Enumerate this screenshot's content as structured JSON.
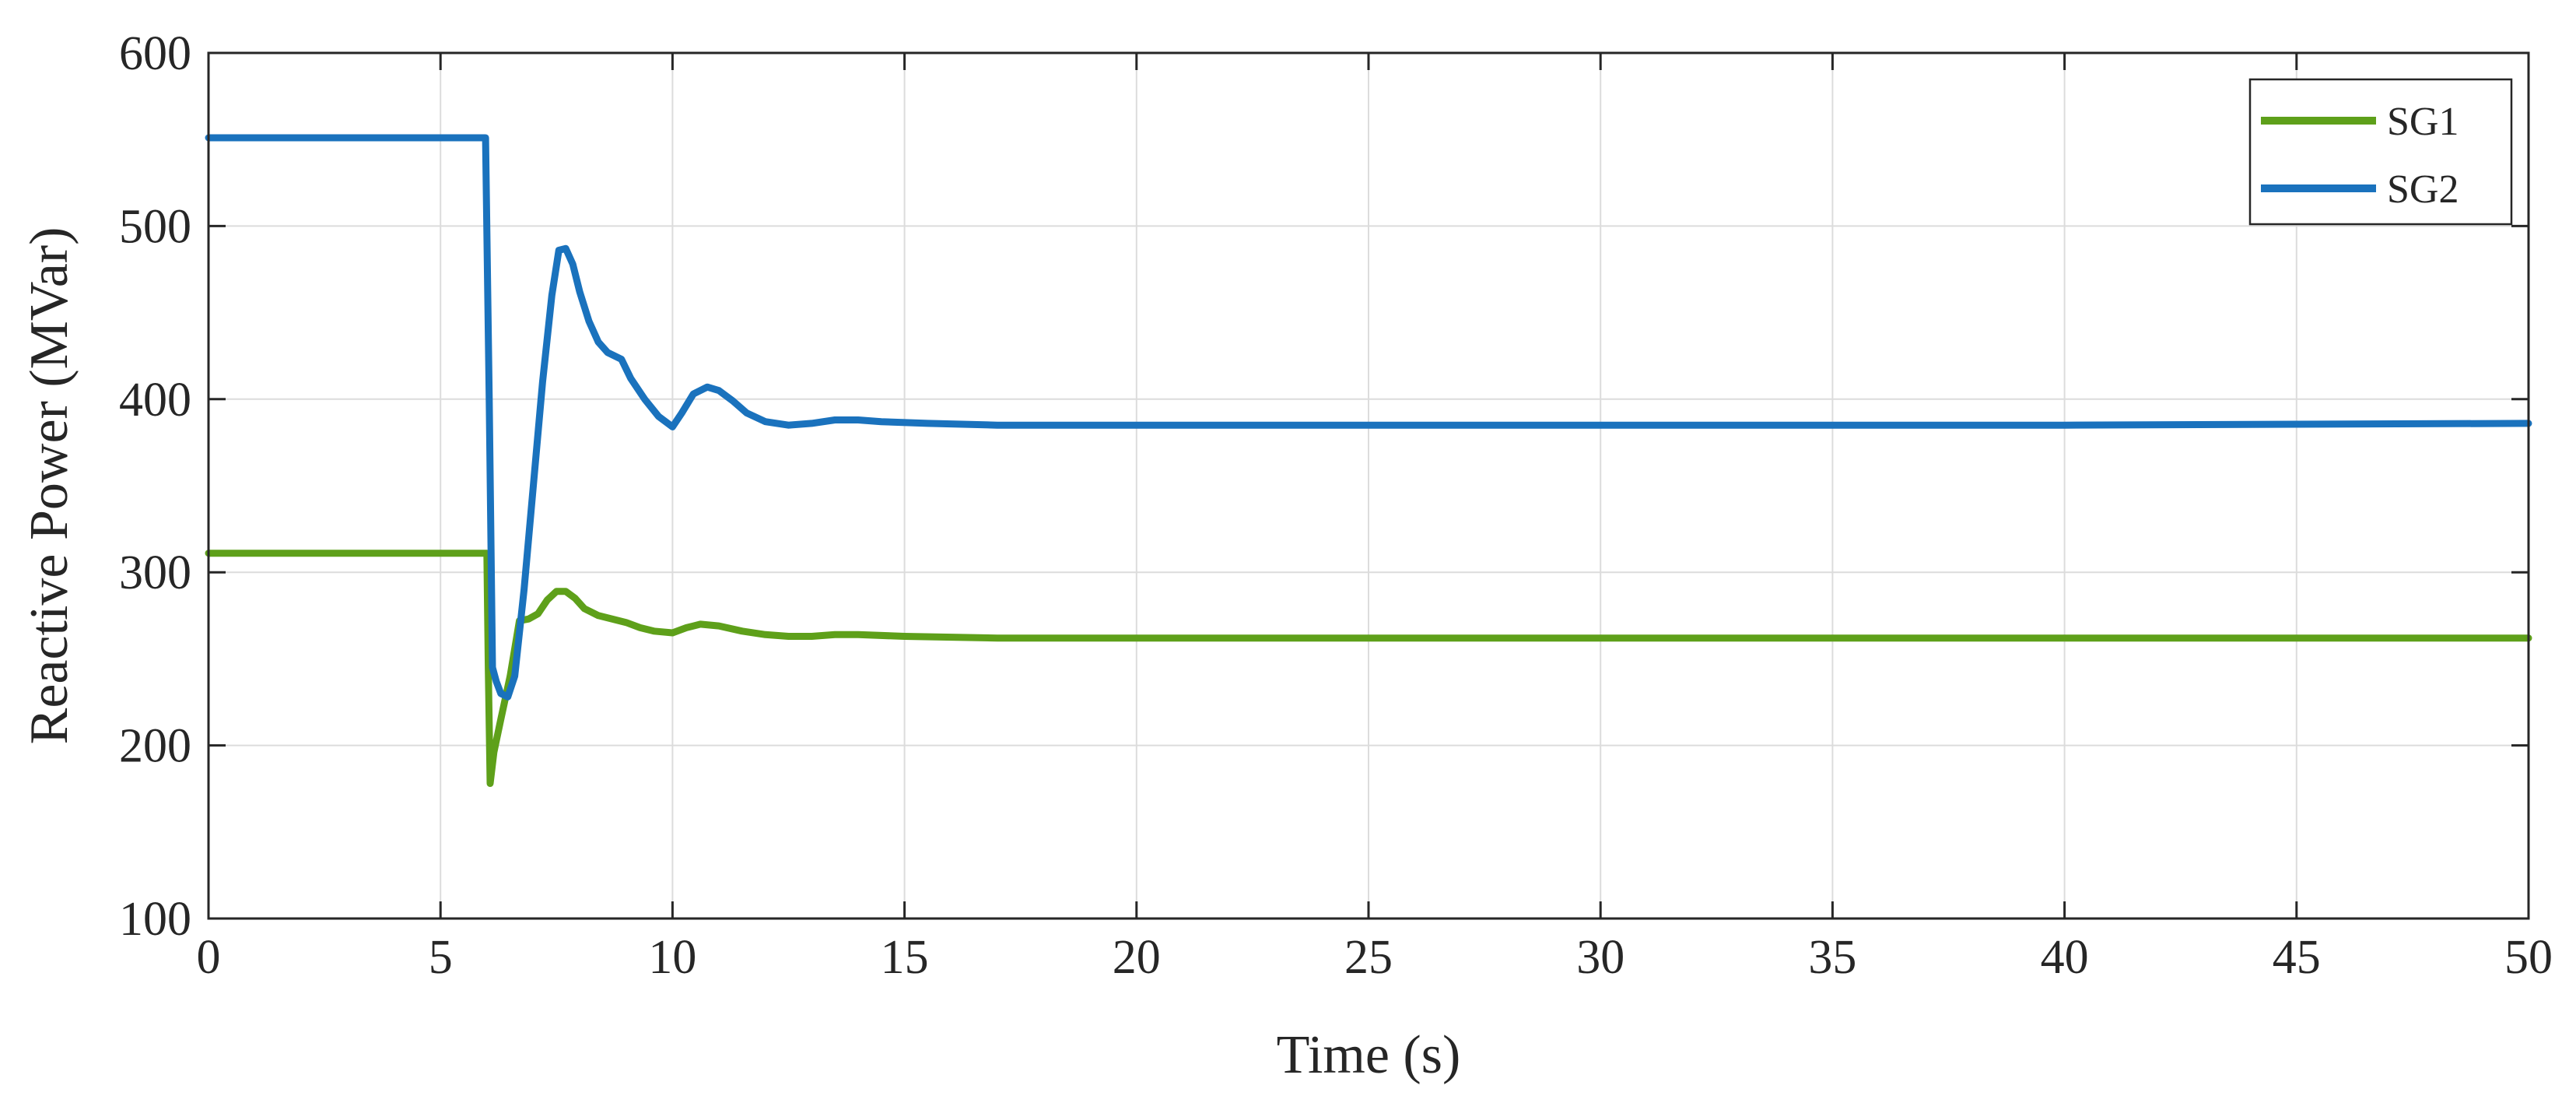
{
  "chart_data": {
    "type": "line",
    "title": "",
    "xlabel": "Time (s)",
    "ylabel": "Reactive Power (MVar)",
    "xlim": [
      0,
      50
    ],
    "ylim": [
      100,
      600
    ],
    "xticks": [
      0,
      5,
      10,
      15,
      20,
      25,
      30,
      35,
      40,
      45,
      50
    ],
    "yticks": [
      100,
      200,
      300,
      400,
      500,
      600
    ],
    "grid": true,
    "legend_position": "top-right",
    "series": [
      {
        "name": "SG1",
        "color": "#5ea01a",
        "points": [
          [
            0,
            311
          ],
          [
            6.0,
            311
          ],
          [
            6.03,
            245
          ],
          [
            6.07,
            178
          ],
          [
            6.15,
            196
          ],
          [
            6.3,
            215
          ],
          [
            6.5,
            240
          ],
          [
            6.7,
            272
          ],
          [
            6.9,
            273
          ],
          [
            7.1,
            276
          ],
          [
            7.3,
            284
          ],
          [
            7.5,
            289
          ],
          [
            7.7,
            289
          ],
          [
            7.9,
            285
          ],
          [
            8.1,
            279
          ],
          [
            8.4,
            275
          ],
          [
            8.7,
            273
          ],
          [
            9.0,
            271
          ],
          [
            9.3,
            268
          ],
          [
            9.6,
            266
          ],
          [
            10.0,
            265
          ],
          [
            10.3,
            268
          ],
          [
            10.6,
            270
          ],
          [
            11.0,
            269
          ],
          [
            11.5,
            266
          ],
          [
            12.0,
            264
          ],
          [
            12.5,
            263
          ],
          [
            13.0,
            263
          ],
          [
            13.5,
            264
          ],
          [
            14.0,
            264
          ],
          [
            15.0,
            263
          ],
          [
            17.0,
            262
          ],
          [
            20.0,
            262
          ],
          [
            30.0,
            262
          ],
          [
            40.0,
            262
          ],
          [
            50.0,
            262
          ]
        ]
      },
      {
        "name": "SG2",
        "color": "#1a72bd",
        "points": [
          [
            0,
            551
          ],
          [
            5.97,
            551
          ],
          [
            6.05,
            400
          ],
          [
            6.12,
            245
          ],
          [
            6.2,
            237
          ],
          [
            6.3,
            230
          ],
          [
            6.45,
            228
          ],
          [
            6.6,
            240
          ],
          [
            6.8,
            290
          ],
          [
            7.0,
            350
          ],
          [
            7.2,
            410
          ],
          [
            7.4,
            460
          ],
          [
            7.55,
            486
          ],
          [
            7.7,
            487
          ],
          [
            7.85,
            478
          ],
          [
            8.0,
            462
          ],
          [
            8.2,
            445
          ],
          [
            8.4,
            433
          ],
          [
            8.6,
            427
          ],
          [
            8.9,
            423
          ],
          [
            9.1,
            412
          ],
          [
            9.4,
            400
          ],
          [
            9.7,
            390
          ],
          [
            10.0,
            384
          ],
          [
            10.2,
            392
          ],
          [
            10.45,
            403
          ],
          [
            10.75,
            407
          ],
          [
            11.0,
            405
          ],
          [
            11.3,
            399
          ],
          [
            11.6,
            392
          ],
          [
            12.0,
            387
          ],
          [
            12.5,
            385
          ],
          [
            13.0,
            386
          ],
          [
            13.5,
            388
          ],
          [
            14.0,
            388
          ],
          [
            14.5,
            387
          ],
          [
            15.5,
            386
          ],
          [
            17.0,
            385
          ],
          [
            20.0,
            385
          ],
          [
            30.0,
            385
          ],
          [
            40.0,
            385
          ],
          [
            50.0,
            386
          ]
        ]
      }
    ]
  }
}
